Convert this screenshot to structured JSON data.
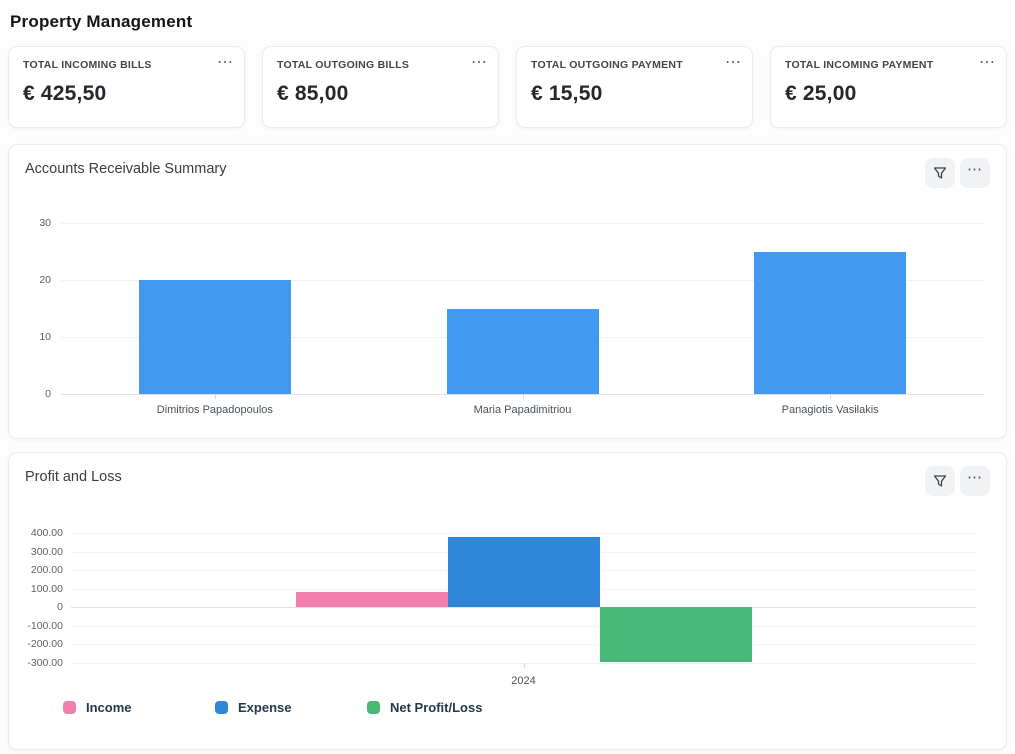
{
  "page": {
    "title": "Property Management"
  },
  "kpis": [
    {
      "label": "TOTAL INCOMING BILLS",
      "value": "€ 425,50",
      "menu_icon": "ellipsis"
    },
    {
      "label": "TOTAL OUTGOING BILLS",
      "value": "€ 85,00",
      "menu_icon": "ellipsis"
    },
    {
      "label": "TOTAL OUTGOING PAYMENT",
      "value": "€ 15,50",
      "menu_icon": "ellipsis"
    },
    {
      "label": "TOTAL INCOMING PAYMENT",
      "value": "€ 25,00",
      "menu_icon": "ellipsis"
    }
  ],
  "toolbar": {
    "filter_icon": "funnel",
    "more_icon": "ellipsis"
  },
  "chart_data": [
    {
      "type": "bar",
      "title": "Accounts Receivable Summary",
      "categories": [
        "Dimitrios Papadopoulos",
        "Maria Papadimitriou",
        "Panagiotis Vasilakis"
      ],
      "values": [
        20,
        15,
        25
      ],
      "ylim": [
        0,
        30
      ],
      "yticks": [
        30,
        20,
        10,
        0
      ],
      "bar_color": "#4398f0",
      "grid": true,
      "legend": false
    },
    {
      "type": "bar",
      "title": "Profit and Loss",
      "categories": [
        "2024"
      ],
      "series": [
        {
          "name": "Income",
          "values": [
            85
          ],
          "color": "#f37fae"
        },
        {
          "name": "Expense",
          "values": [
            380
          ],
          "color": "#2f86d8"
        },
        {
          "name": "Net Profit/Loss",
          "values": [
            -295
          ],
          "color": "#47b876"
        }
      ],
      "ylim": [
        -300,
        400
      ],
      "yticks": [
        400,
        300,
        200,
        100,
        0,
        -100,
        -200,
        -300
      ],
      "ytick_labels": [
        "400.00",
        "300.00",
        "200.00",
        "100.00",
        "0",
        "-100.00",
        "-200.00",
        "-300.00"
      ],
      "grid": true,
      "legend_position": "bottom"
    }
  ]
}
